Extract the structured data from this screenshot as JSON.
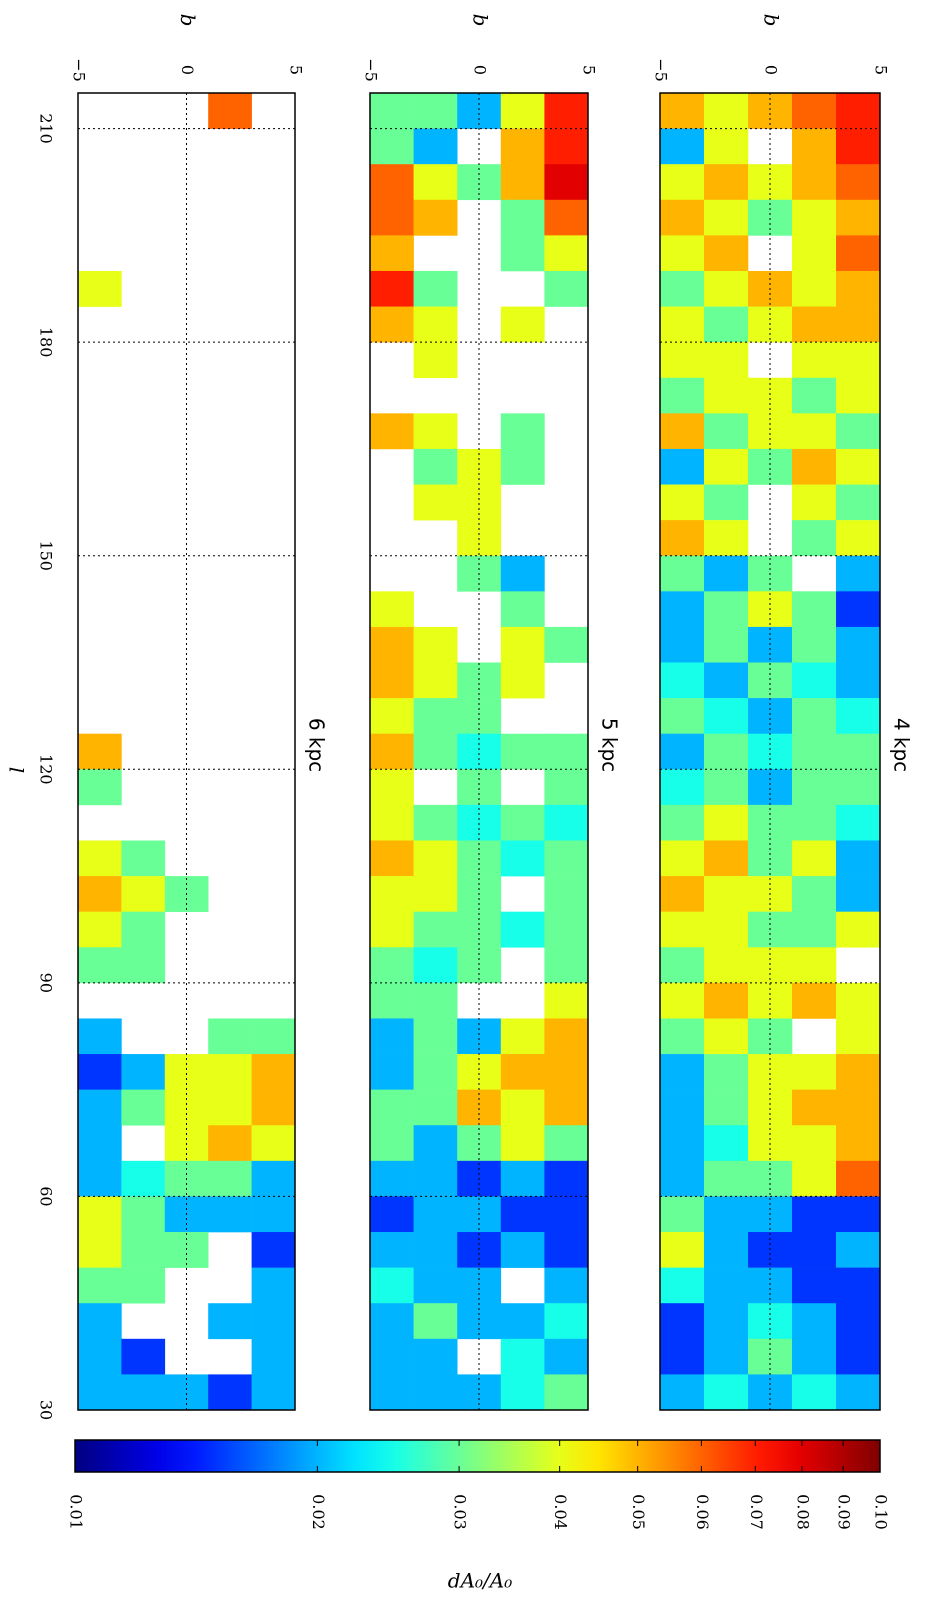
{
  "chart_data": {
    "type": "heatmap",
    "colormap": "jet",
    "colorscale": "log",
    "xlabel": "l",
    "ylabel": "b",
    "clabel": "dA₀/A₀",
    "xlim": [
      30,
      215
    ],
    "xticks": [
      30,
      60,
      90,
      120,
      150,
      180,
      210
    ],
    "ylim": [
      -5,
      5
    ],
    "yticks": [
      {
        "value": -5,
        "label": "−5"
      },
      0,
      5
    ],
    "clim": [
      0.01,
      0.1
    ],
    "cticks": [
      0.01,
      0.02,
      0.03,
      0.04,
      0.05,
      0.06,
      0.07,
      0.08,
      0.09,
      {
        "value": 0.1,
        "label": "0.10"
      }
    ],
    "grid": true,
    "l_bins": [
      215,
      210,
      205,
      200,
      195,
      190,
      185,
      180,
      175,
      170,
      165,
      160,
      155,
      150,
      145,
      140,
      135,
      130,
      125,
      120,
      115,
      110,
      105,
      100,
      95,
      90,
      85,
      80,
      75,
      70,
      65,
      60,
      55,
      50,
      45,
      40,
      35,
      30
    ],
    "b_bins": [
      -5,
      -3,
      -1,
      1,
      3,
      5
    ],
    "panels": [
      {
        "label": "4 kpc",
        "values": [
          [
            0.05,
            0.04,
            0.05,
            0.06,
            0.07
          ],
          [
            0.02,
            0.04,
            null,
            0.05,
            0.07
          ],
          [
            0.04,
            0.05,
            0.04,
            0.05,
            0.06
          ],
          [
            0.05,
            0.04,
            0.03,
            0.04,
            0.05
          ],
          [
            0.04,
            0.05,
            null,
            0.04,
            0.06
          ],
          [
            0.03,
            0.04,
            0.05,
            0.04,
            0.05
          ],
          [
            0.04,
            0.03,
            0.04,
            0.05,
            0.05
          ],
          [
            0.04,
            0.04,
            null,
            0.04,
            0.04
          ],
          [
            0.03,
            0.04,
            0.04,
            0.03,
            0.04
          ],
          [
            0.05,
            0.03,
            0.04,
            0.04,
            0.03
          ],
          [
            0.02,
            0.04,
            0.03,
            0.05,
            0.04
          ],
          [
            0.04,
            0.03,
            null,
            0.04,
            0.03
          ],
          [
            0.05,
            0.04,
            null,
            0.03,
            0.04
          ],
          [
            0.03,
            0.02,
            0.03,
            null,
            0.02
          ],
          [
            0.02,
            0.03,
            0.04,
            0.03,
            0.015
          ],
          [
            0.02,
            0.03,
            0.02,
            0.03,
            0.02
          ],
          [
            0.025,
            0.02,
            0.03,
            0.025,
            0.02
          ],
          [
            0.03,
            0.025,
            0.02,
            0.03,
            0.025
          ],
          [
            0.02,
            0.03,
            0.025,
            0.03,
            0.03
          ],
          [
            0.025,
            0.03,
            0.02,
            0.03,
            0.03
          ],
          [
            0.03,
            0.04,
            0.03,
            0.03,
            0.025
          ],
          [
            0.04,
            0.05,
            0.03,
            0.04,
            0.02
          ],
          [
            0.05,
            0.04,
            0.04,
            0.03,
            0.02
          ],
          [
            0.04,
            0.04,
            0.03,
            0.03,
            0.04
          ],
          [
            0.03,
            0.04,
            0.04,
            0.04,
            null
          ],
          [
            0.04,
            0.05,
            0.04,
            0.05,
            0.04
          ],
          [
            0.03,
            0.04,
            0.03,
            null,
            0.04
          ],
          [
            0.02,
            0.03,
            0.04,
            0.04,
            0.05
          ],
          [
            0.02,
            0.03,
            0.04,
            0.05,
            0.05
          ],
          [
            0.02,
            0.025,
            0.04,
            0.04,
            0.05
          ],
          [
            0.02,
            0.03,
            0.03,
            0.04,
            0.06
          ],
          [
            0.03,
            0.02,
            0.02,
            0.015,
            0.015
          ],
          [
            0.04,
            0.02,
            0.015,
            0.015,
            0.02
          ],
          [
            0.025,
            0.02,
            0.02,
            0.015,
            0.015
          ],
          [
            0.015,
            0.02,
            0.025,
            0.02,
            0.015
          ],
          [
            0.015,
            0.02,
            0.03,
            0.02,
            0.015
          ],
          [
            0.02,
            0.025,
            0.02,
            0.025,
            0.02
          ]
        ]
      },
      {
        "label": "5 kpc",
        "values": [
          [
            0.03,
            0.03,
            0.02,
            0.04,
            0.07
          ],
          [
            0.03,
            0.02,
            null,
            0.05,
            0.07
          ],
          [
            0.06,
            0.04,
            0.03,
            0.05,
            0.08
          ],
          [
            0.06,
            0.05,
            null,
            0.03,
            0.06
          ],
          [
            0.05,
            null,
            null,
            0.03,
            0.04
          ],
          [
            0.07,
            0.03,
            null,
            null,
            0.03
          ],
          [
            0.05,
            0.04,
            null,
            0.04,
            null
          ],
          [
            null,
            0.04,
            null,
            null,
            null
          ],
          [
            null,
            null,
            null,
            null,
            null
          ],
          [
            0.05,
            0.04,
            null,
            0.03,
            null
          ],
          [
            null,
            0.03,
            0.04,
            0.03,
            null
          ],
          [
            null,
            0.04,
            0.04,
            null,
            null
          ],
          [
            null,
            null,
            0.04,
            null,
            null
          ],
          [
            null,
            null,
            0.03,
            0.02,
            null
          ],
          [
            0.04,
            null,
            null,
            0.03,
            null
          ],
          [
            0.05,
            0.04,
            null,
            0.04,
            0.03
          ],
          [
            0.05,
            0.04,
            0.03,
            0.04,
            null
          ],
          [
            0.04,
            0.03,
            0.03,
            null,
            null
          ],
          [
            0.05,
            0.03,
            0.025,
            0.03,
            0.03
          ],
          [
            0.04,
            null,
            0.03,
            null,
            0.03
          ],
          [
            0.04,
            0.03,
            0.025,
            0.03,
            0.025
          ],
          [
            0.05,
            0.04,
            0.03,
            0.025,
            0.03
          ],
          [
            0.04,
            0.04,
            0.03,
            null,
            0.03
          ],
          [
            0.04,
            0.03,
            0.03,
            0.025,
            0.03
          ],
          [
            0.03,
            0.025,
            0.03,
            null,
            0.03
          ],
          [
            0.03,
            0.03,
            null,
            null,
            0.04
          ],
          [
            0.02,
            0.03,
            0.02,
            0.04,
            0.05
          ],
          [
            0.02,
            0.03,
            0.04,
            0.05,
            0.05
          ],
          [
            0.03,
            0.03,
            0.05,
            0.04,
            0.05
          ],
          [
            0.03,
            0.02,
            0.03,
            0.04,
            0.03
          ],
          [
            0.02,
            0.02,
            0.015,
            0.02,
            0.015
          ],
          [
            0.015,
            0.02,
            0.02,
            0.015,
            0.015
          ],
          [
            0.02,
            0.02,
            0.015,
            0.02,
            0.015
          ],
          [
            0.025,
            0.02,
            0.02,
            null,
            0.02
          ],
          [
            0.02,
            0.03,
            0.02,
            0.02,
            0.025
          ],
          [
            0.02,
            0.02,
            null,
            0.025,
            0.02
          ],
          [
            0.02,
            0.02,
            0.02,
            0.025,
            0.03
          ]
        ]
      },
      {
        "label": "6 kpc",
        "values": [
          [
            null,
            null,
            null,
            0.06,
            null
          ],
          [
            null,
            null,
            null,
            null,
            null
          ],
          [
            null,
            null,
            null,
            null,
            null
          ],
          [
            null,
            null,
            null,
            null,
            null
          ],
          [
            null,
            null,
            null,
            null,
            null
          ],
          [
            0.04,
            null,
            null,
            null,
            null
          ],
          [
            null,
            null,
            null,
            null,
            null
          ],
          [
            null,
            null,
            null,
            null,
            null
          ],
          [
            null,
            null,
            null,
            null,
            null
          ],
          [
            null,
            null,
            null,
            null,
            null
          ],
          [
            null,
            null,
            null,
            null,
            null
          ],
          [
            null,
            null,
            null,
            null,
            null
          ],
          [
            null,
            null,
            null,
            null,
            null
          ],
          [
            null,
            null,
            null,
            null,
            null
          ],
          [
            null,
            null,
            null,
            null,
            null
          ],
          [
            null,
            null,
            null,
            null,
            null
          ],
          [
            null,
            null,
            null,
            null,
            null
          ],
          [
            null,
            null,
            null,
            null,
            null
          ],
          [
            0.05,
            null,
            null,
            null,
            null
          ],
          [
            0.03,
            null,
            null,
            null,
            null
          ],
          [
            null,
            null,
            null,
            null,
            null
          ],
          [
            0.04,
            0.03,
            null,
            null,
            null
          ],
          [
            0.05,
            0.04,
            0.03,
            null,
            null
          ],
          [
            0.04,
            0.03,
            null,
            null,
            null
          ],
          [
            0.03,
            0.03,
            null,
            null,
            null
          ],
          [
            null,
            null,
            null,
            null,
            null
          ],
          [
            0.02,
            null,
            null,
            0.03,
            0.03
          ],
          [
            0.015,
            0.02,
            0.04,
            0.04,
            0.05
          ],
          [
            0.02,
            0.03,
            0.04,
            0.04,
            0.05
          ],
          [
            0.02,
            null,
            0.04,
            0.05,
            0.04
          ],
          [
            0.02,
            0.025,
            0.03,
            0.03,
            0.02
          ],
          [
            0.04,
            0.03,
            0.02,
            0.02,
            0.02
          ],
          [
            0.04,
            0.03,
            0.03,
            null,
            0.015
          ],
          [
            0.03,
            0.03,
            null,
            null,
            0.02
          ],
          [
            0.02,
            null,
            null,
            0.02,
            0.02
          ],
          [
            0.02,
            0.015,
            null,
            null,
            0.02
          ],
          [
            0.02,
            0.02,
            0.02,
            0.015,
            0.02
          ]
        ]
      }
    ]
  }
}
